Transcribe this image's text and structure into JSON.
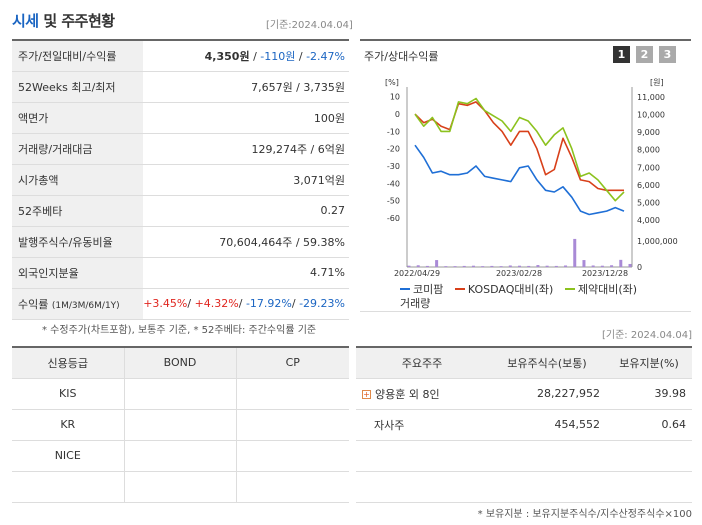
{
  "header": {
    "title_blue": "시세",
    "title_rest": " 및 주주현황",
    "basedate": "[기준:2024.04.04]"
  },
  "price": {
    "rows": [
      {
        "label": "주가/전일대비/수익률",
        "price": "4,350원",
        "sep1": " / ",
        "change": "-110원",
        "sep2": " / ",
        "rate": "-2.47%"
      },
      {
        "label": "52Weeks 최고/최저",
        "value": "7,657원 / 3,735원"
      },
      {
        "label": "액면가",
        "value": "100원"
      },
      {
        "label": "거래량/거래대금",
        "value": "129,274주 / 6억원"
      },
      {
        "label": "시가총액",
        "value": "3,071억원"
      },
      {
        "label": "52주베타",
        "value": "0.27"
      },
      {
        "label": "발행주식수/유동비율",
        "value": "70,604,464주 / 59.38%"
      },
      {
        "label": "외국인지분율",
        "value": "4.71%"
      }
    ],
    "return_row": {
      "label": "수익률",
      "sub": "(1M/3M/6M/1Y)",
      "r1": "+3.45%",
      "r2": "+4.32%",
      "r3": "-17.92%",
      "r4": "-29.23%",
      "slash": "/ "
    },
    "note": "* 수정주가(차트포함), 보통주 기준, * 52주베타: 주간수익률 기준"
  },
  "chart": {
    "title": "주가/상대수익률",
    "pages": [
      "1",
      "2",
      "3"
    ],
    "legend": {
      "s1": "코미팜",
      "s2": "KOSDAQ대비(좌)",
      "s3": "제약대비(좌)",
      "s4": "거래량"
    },
    "colors": {
      "s1": "#1f6fd6",
      "s2": "#d8401a",
      "s3": "#8cc21e",
      "vol": "#a98ad6"
    }
  },
  "chart_data": {
    "type": "line",
    "x_ticks": [
      "2022/04/29",
      "2023/02/28",
      "2023/12/28"
    ],
    "left_axis": {
      "unit": "[%]",
      "ticks": [
        10,
        0,
        -10,
        -20,
        -30,
        -40,
        -50,
        -60
      ],
      "range": [
        -60,
        11
      ]
    },
    "right_axis": {
      "unit": "[원]",
      "ticks": [
        "11,000",
        "10,000",
        "9,000",
        "8,000",
        "7,000",
        "6,000",
        "5,000",
        "4,000"
      ],
      "range": [
        3600,
        11000
      ]
    },
    "volume_axis": {
      "ticks": [
        "1,000,000",
        "0"
      ],
      "range": [
        0,
        1200000
      ]
    },
    "series": [
      {
        "name": "코미팜",
        "values": [
          -18,
          -25,
          -34,
          -33,
          -35,
          -35,
          -34,
          -30,
          -36,
          -37,
          -38,
          -39,
          -31,
          -30,
          -38,
          -44,
          -45,
          -42,
          -48,
          -56,
          -58,
          -57,
          -56,
          -54,
          -56
        ]
      },
      {
        "name": "KOSDAQ대비(좌)",
        "values": [
          0,
          -5,
          -3,
          -7,
          -9,
          6,
          5,
          7,
          2,
          -5,
          -10,
          -18,
          -10,
          -10,
          -20,
          -35,
          -32,
          -14,
          -25,
          -38,
          -39,
          -43,
          -44,
          -44,
          -44
        ]
      },
      {
        "name": "제약대비(좌)",
        "values": [
          0,
          -7,
          -2,
          -10,
          -10,
          7,
          6,
          9,
          2,
          -1,
          -4,
          -10,
          -2,
          -4,
          -10,
          -18,
          -12,
          -8,
          -20,
          -36,
          -34,
          -38,
          -44,
          -50,
          -45
        ]
      }
    ],
    "volume": [
      60000,
      80000,
      50000,
      320000,
      40000,
      40000,
      50000,
      60000,
      40000,
      50000,
      40000,
      70000,
      60000,
      50000,
      90000,
      60000,
      50000,
      70000,
      1450000,
      320000,
      70000,
      60000,
      80000,
      330000,
      140000
    ]
  },
  "credit": {
    "headers": [
      "신용등급",
      "BOND",
      "CP"
    ],
    "rows": [
      [
        "KIS",
        "",
        ""
      ],
      [
        "KR",
        "",
        ""
      ],
      [
        "NICE",
        "",
        ""
      ],
      [
        "",
        "",
        ""
      ]
    ]
  },
  "holders": {
    "basedate": "[기준: 2024.04.04]",
    "headers": [
      "주요주주",
      "보유주식수(보통)",
      "보유지분(%)"
    ],
    "rows": [
      {
        "name": "양용훈 외 8인",
        "shares": "28,227,952",
        "pct": "39.98",
        "expand": "+"
      },
      {
        "name": "자사주",
        "shares": "454,552",
        "pct": "0.64"
      },
      {
        "name": "",
        "shares": "",
        "pct": ""
      },
      {
        "name": "",
        "shares": "",
        "pct": ""
      }
    ],
    "note": "* 보유지분 : 보유지분주식수/지수산정주식수×100"
  }
}
